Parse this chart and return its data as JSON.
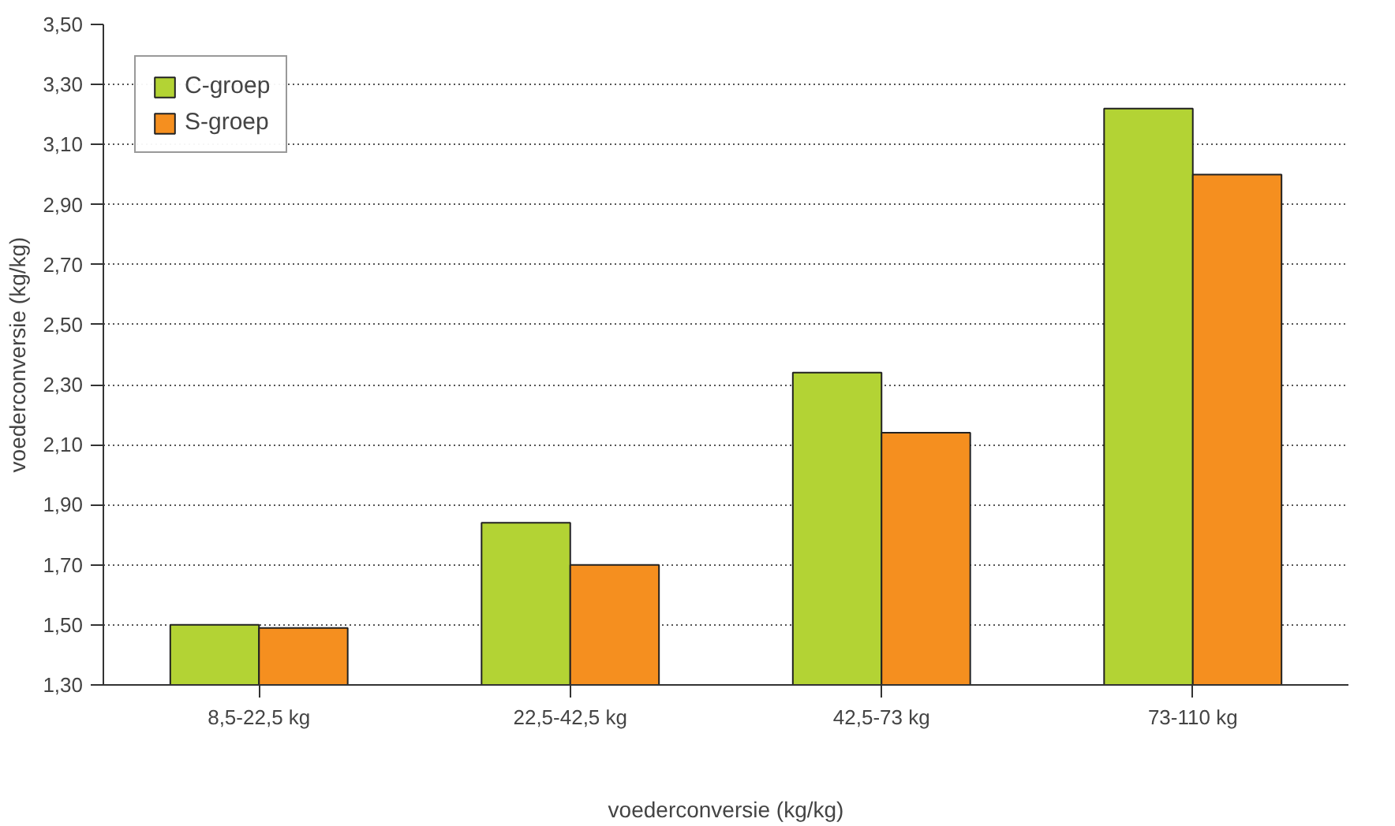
{
  "chart_data": {
    "type": "bar",
    "xlabel": "voederconversie (kg/kg)",
    "ylabel": "voederconversie (kg/kg)",
    "categories": [
      "8,5-22,5 kg",
      "22,5-42,5 kg",
      "42,5-73 kg",
      "73-110 kg"
    ],
    "series": [
      {
        "name": "C-groep",
        "color": "#b3d334",
        "values": [
          1.5,
          1.84,
          2.34,
          3.22
        ]
      },
      {
        "name": "S-groep",
        "color": "#f58f1f",
        "values": [
          1.49,
          1.7,
          2.14,
          3.0
        ]
      }
    ],
    "ylim": [
      1.3,
      3.5
    ],
    "yticks": [
      {
        "value": 1.3,
        "label": "1,30"
      },
      {
        "value": 1.5,
        "label": "1,50"
      },
      {
        "value": 1.7,
        "label": "1,70"
      },
      {
        "value": 1.9,
        "label": "1,90"
      },
      {
        "value": 2.1,
        "label": "2,10"
      },
      {
        "value": 2.3,
        "label": "2,30"
      },
      {
        "value": 2.5,
        "label": "2,50"
      },
      {
        "value": 2.7,
        "label": "2,70"
      },
      {
        "value": 2.9,
        "label": "2,90"
      },
      {
        "value": 3.1,
        "label": "3,10"
      },
      {
        "value": 3.3,
        "label": "3,30"
      },
      {
        "value": 3.5,
        "label": "3,50"
      }
    ],
    "grid": "y",
    "legend": "top left"
  }
}
